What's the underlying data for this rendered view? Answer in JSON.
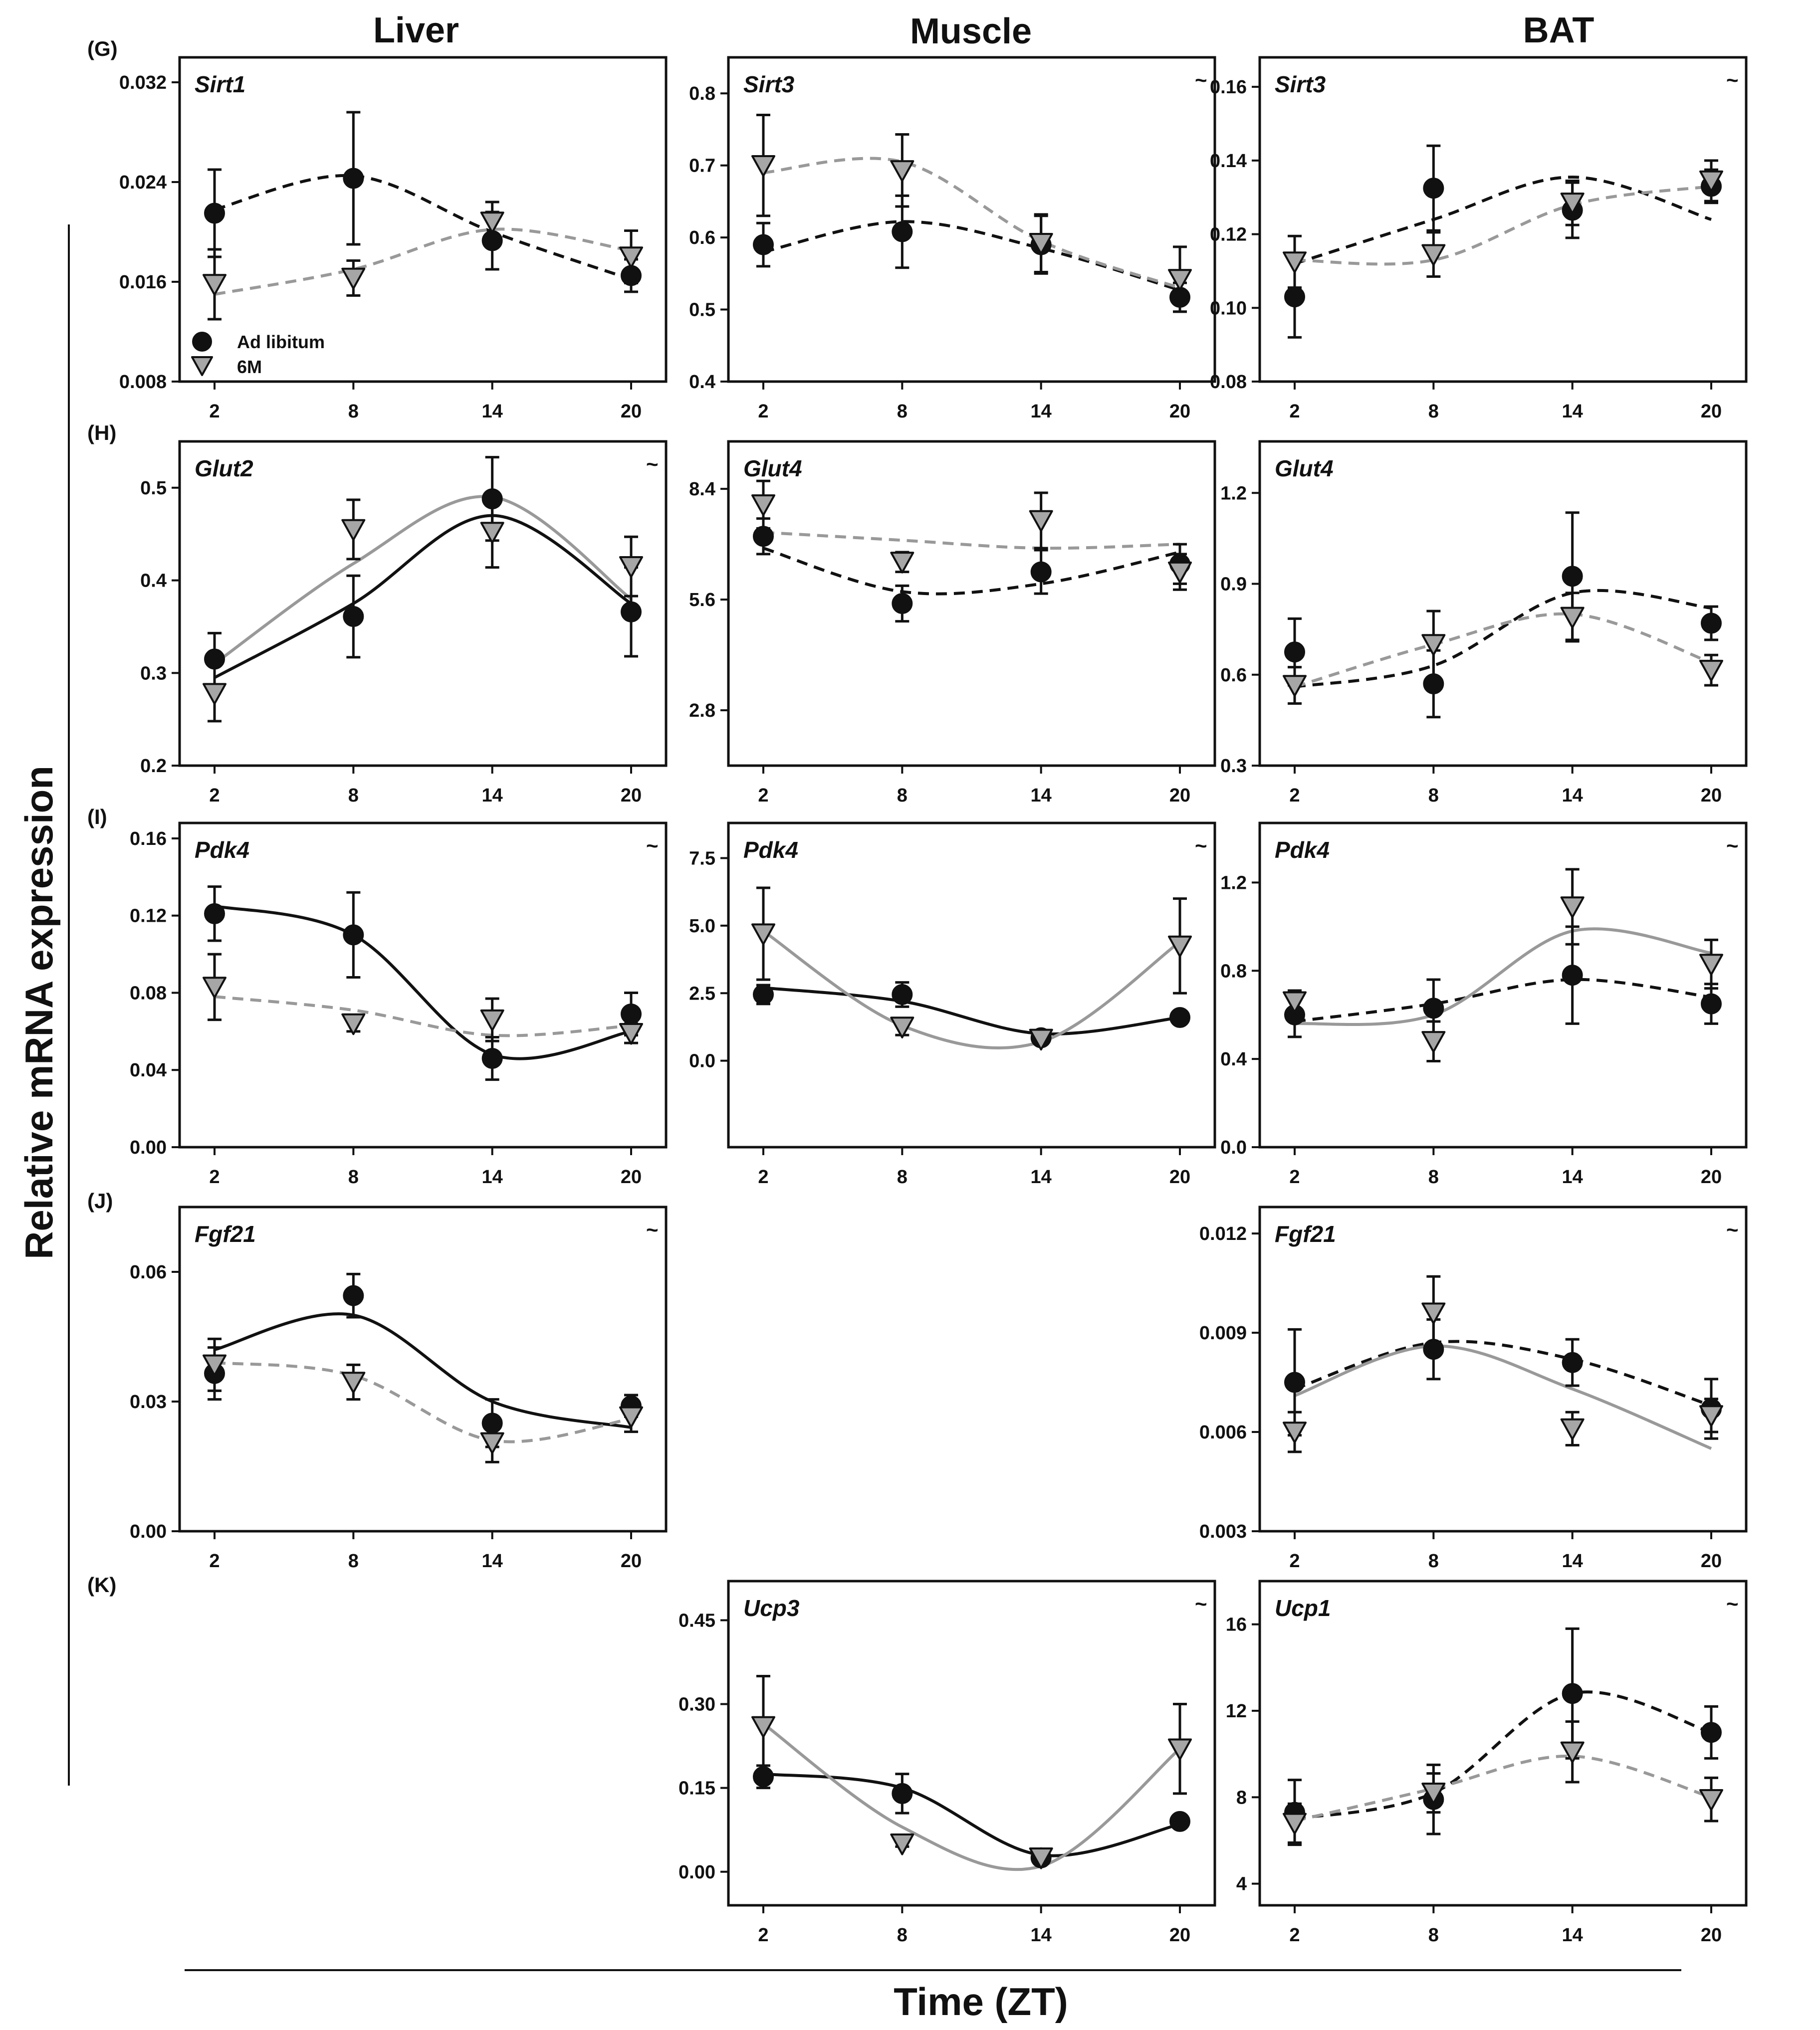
{
  "columns": [
    "Liver",
    "Muscle",
    "BAT"
  ],
  "row_letters": [
    "(G)",
    "(H)",
    "(I)",
    "(J)",
    "(K)"
  ],
  "y_axis_title": "Relative mRNA expression",
  "x_axis_title": "Time (ZT)",
  "legend": [
    {
      "label": "Ad libitum",
      "marker": "circle",
      "color": "#111111"
    },
    {
      "label": "6M",
      "marker": "triangle-down",
      "color": "#a6a6a6"
    }
  ],
  "colors": {
    "adlib": "#111111",
    "sixm": "#a6a6a6",
    "sixm_line": "#999999"
  },
  "chart_data": [
    {
      "type": "scatter",
      "row": 0,
      "col": 0,
      "gene": "Sirt1",
      "tilde": false,
      "title": "Sirt1",
      "xlabel": "Time (ZT)",
      "ylabel": "Relative mRNA expression",
      "x": [
        2,
        8,
        14,
        20
      ],
      "xticks": [
        "2",
        "8",
        "14",
        "20"
      ],
      "ylim": [
        0.008,
        0.034
      ],
      "yticks": [
        0.008,
        0.016,
        0.024,
        0.032
      ],
      "yticklabels": [
        "0.008",
        "0.016",
        "0.024",
        "0.032"
      ],
      "show_legend": true,
      "series": [
        {
          "name": "Ad libitum",
          "values": [
            0.0215,
            0.0243,
            0.0193,
            0.0165
          ],
          "errors": [
            0.0035,
            0.0053,
            0.0023,
            0.0013
          ],
          "curve": [
            0.0218,
            0.0245,
            0.02,
            0.0162
          ],
          "line": "dashed"
        },
        {
          "name": "6M",
          "values": [
            0.0158,
            0.0163,
            0.0208,
            0.018
          ],
          "errors": [
            0.0028,
            0.0014,
            0.0016,
            0.0021
          ],
          "curve": [
            0.015,
            0.017,
            0.0202,
            0.0185
          ],
          "line": "dashed"
        }
      ]
    },
    {
      "type": "scatter",
      "row": 0,
      "col": 1,
      "gene": "Sirt3",
      "tilde": true,
      "title": "Sirt3",
      "xlabel": "Time (ZT)",
      "ylabel": "Relative mRNA expression",
      "x": [
        2,
        8,
        14,
        20
      ],
      "xticks": [
        "2",
        "8",
        "14",
        "20"
      ],
      "ylim": [
        0.4,
        0.85
      ],
      "yticks": [
        0.4,
        0.5,
        0.6,
        0.7,
        0.8
      ],
      "yticklabels": [
        "0.4",
        "0.5",
        "0.6",
        "0.7",
        "0.8"
      ],
      "series": [
        {
          "name": "Ad libitum",
          "values": [
            0.59,
            0.608,
            0.59,
            0.517
          ],
          "errors": [
            0.03,
            0.05,
            0.04,
            0.02
          ],
          "curve": [
            0.58,
            0.622,
            0.585,
            0.527
          ],
          "line": "dashed"
        },
        {
          "name": "6M",
          "values": [
            0.7,
            0.693,
            0.592,
            0.542
          ],
          "errors": [
            0.07,
            0.05,
            0.04,
            0.045
          ],
          "curve": [
            0.69,
            0.705,
            0.595,
            0.53
          ],
          "line": "dashed"
        }
      ]
    },
    {
      "type": "scatter",
      "row": 0,
      "col": 2,
      "gene": "Sirt3",
      "tilde": true,
      "title": "Sirt3",
      "xlabel": "Time (ZT)",
      "ylabel": "Relative mRNA expression",
      "x": [
        2,
        8,
        14,
        20
      ],
      "xticks": [
        "2",
        "8",
        "14",
        "20"
      ],
      "ylim": [
        0.08,
        0.168
      ],
      "yticks": [
        0.08,
        0.1,
        0.12,
        0.14,
        0.16
      ],
      "yticklabels": [
        "0.08",
        "0.10",
        "0.12",
        "0.14",
        "0.16"
      ],
      "series": [
        {
          "name": "Ad libitum",
          "values": [
            0.103,
            0.1325,
            0.1265,
            0.133
          ],
          "errors": [
            0.011,
            0.0115,
            0.0075,
            0.0045
          ],
          "curve": [
            0.112,
            0.124,
            0.1355,
            0.124
          ],
          "line": "dashed"
        },
        {
          "name": "6M",
          "values": [
            0.1125,
            0.1145,
            0.1285,
            0.1345
          ],
          "errors": [
            0.007,
            0.006,
            0.006,
            0.0055
          ],
          "curve": [
            0.113,
            0.113,
            0.128,
            0.133
          ],
          "line": "dashed"
        }
      ]
    },
    {
      "type": "scatter",
      "row": 1,
      "col": 0,
      "gene": "Glut2",
      "tilde": true,
      "title": "Glut2",
      "xlabel": "Time (ZT)",
      "ylabel": "Relative mRNA expression",
      "x": [
        2,
        8,
        14,
        20
      ],
      "xticks": [
        "2",
        "8",
        "14",
        "20"
      ],
      "ylim": [
        0.2,
        0.55
      ],
      "yticks": [
        0.2,
        0.3,
        0.4,
        0.5
      ],
      "yticklabels": [
        "0.2",
        "0.3",
        "0.4",
        "0.5"
      ],
      "series": [
        {
          "name": "Ad libitum",
          "values": [
            0.315,
            0.361,
            0.488,
            0.366
          ],
          "errors": [
            0.028,
            0.044,
            0.045,
            0.048
          ],
          "curve": [
            0.295,
            0.375,
            0.47,
            0.375
          ],
          "line": "solid"
        },
        {
          "name": "6M",
          "values": [
            0.278,
            0.455,
            0.452,
            0.415
          ],
          "errors": [
            0.03,
            0.032,
            0.038,
            0.032
          ],
          "curve": [
            0.31,
            0.418,
            0.49,
            0.38
          ],
          "line": "solid"
        }
      ]
    },
    {
      "type": "scatter",
      "row": 1,
      "col": 1,
      "gene": "Glut4",
      "tilde": false,
      "title": "Glut4",
      "xlabel": "Time (ZT)",
      "ylabel": "Relative mRNA expression",
      "x": [
        2,
        8,
        14,
        20
      ],
      "xticks": [
        "2",
        "8",
        "14",
        "20"
      ],
      "ylim": [
        1.4,
        9.6
      ],
      "yticks": [
        2.8,
        5.6,
        8.4
      ],
      "yticklabels": [
        "2.8",
        "5.6",
        "8.4"
      ],
      "series": [
        {
          "name": "Ad libitum",
          "values": [
            7.2,
            5.5,
            6.3,
            6.5
          ],
          "errors": [
            0.45,
            0.45,
            0.55,
            0.5
          ],
          "curve": [
            6.9,
            5.8,
            6.0,
            6.8
          ],
          "line": "dashed"
        },
        {
          "name": "6M",
          "values": [
            8.0,
            6.55,
            7.6,
            6.3
          ],
          "errors": [
            0.6,
            0.25,
            0.7,
            0.45
          ],
          "curve": [
            7.3,
            7.1,
            6.9,
            7.0
          ],
          "line": "dashed"
        }
      ]
    },
    {
      "type": "scatter",
      "row": 1,
      "col": 2,
      "gene": "Glut4",
      "tilde": false,
      "title": "Glut4",
      "xlabel": "Time (ZT)",
      "ylabel": "Relative mRNA expression",
      "x": [
        2,
        8,
        14,
        20
      ],
      "xticks": [
        "2",
        "8",
        "14",
        "20"
      ],
      "ylim": [
        0.3,
        1.37
      ],
      "yticks": [
        0.3,
        0.6,
        0.9,
        1.2
      ],
      "yticklabels": [
        "0.3",
        "0.6",
        "0.9",
        "1.2"
      ],
      "series": [
        {
          "name": "Ad libitum",
          "values": [
            0.675,
            0.57,
            0.925,
            0.77
          ],
          "errors": [
            0.11,
            0.11,
            0.21,
            0.055
          ],
          "curve": [
            0.56,
            0.63,
            0.87,
            0.82
          ],
          "line": "dashed"
        },
        {
          "name": "6M",
          "values": [
            0.565,
            0.7,
            0.79,
            0.615
          ],
          "errors": [
            0.06,
            0.11,
            0.08,
            0.05
          ],
          "curve": [
            0.56,
            0.7,
            0.8,
            0.64
          ],
          "line": "dashed"
        }
      ]
    },
    {
      "type": "scatter",
      "row": 2,
      "col": 0,
      "gene": "Pdk4",
      "tilde": true,
      "title": "Pdk4",
      "xlabel": "Time (ZT)",
      "ylabel": "Relative mRNA expression",
      "x": [
        2,
        8,
        14,
        20
      ],
      "xticks": [
        "2",
        "8",
        "14",
        "20"
      ],
      "ylim": [
        0,
        0.168
      ],
      "yticks": [
        0,
        0.04,
        0.08,
        0.12,
        0.16
      ],
      "yticklabels": [
        "0.00",
        "0.04",
        "0.08",
        "0.12",
        "0.16"
      ],
      "series": [
        {
          "name": "Ad libitum",
          "values": [
            0.121,
            0.11,
            0.046,
            0.069
          ],
          "errors": [
            0.014,
            0.022,
            0.011,
            0.011
          ],
          "curve": [
            0.125,
            0.11,
            0.048,
            0.06
          ],
          "line": "solid"
        },
        {
          "name": "6M",
          "values": [
            0.083,
            0.064,
            0.066,
            0.059
          ],
          "errors": [
            0.017,
            0.004,
            0.011,
            0.005
          ],
          "curve": [
            0.078,
            0.071,
            0.058,
            0.063
          ],
          "line": "dashed"
        }
      ]
    },
    {
      "type": "scatter",
      "row": 2,
      "col": 1,
      "gene": "Pdk4",
      "tilde": true,
      "title": "Pdk4",
      "xlabel": "Time (ZT)",
      "ylabel": "Relative mRNA expression",
      "x": [
        2,
        8,
        14,
        20
      ],
      "xticks": [
        "2",
        "8",
        "14",
        "20"
      ],
      "ylim": [
        -3.2,
        8.8
      ],
      "yticks": [
        0,
        2.5,
        5.0,
        7.5
      ],
      "yticklabels": [
        "0.0",
        "2.5",
        "5.0",
        "7.5"
      ],
      "series": [
        {
          "name": "Ad libitum",
          "values": [
            2.45,
            2.45,
            0.85,
            1.6
          ],
          "errors": [
            0.35,
            0.45,
            0.2,
            0.15
          ],
          "curve": [
            2.7,
            2.2,
            1.0,
            1.6
          ],
          "line": "solid"
        },
        {
          "name": "6M",
          "values": [
            4.7,
            1.25,
            0.8,
            4.25
          ],
          "errors": [
            1.7,
            0.3,
            0.15,
            1.75
          ],
          "curve": [
            4.8,
            1.3,
            0.7,
            4.4
          ],
          "line": "solid"
        }
      ]
    },
    {
      "type": "scatter",
      "row": 2,
      "col": 2,
      "gene": "Pdk4",
      "tilde": true,
      "title": "Pdk4",
      "xlabel": "Time (ZT)",
      "ylabel": "Relative mRNA expression",
      "x": [
        2,
        8,
        14,
        20
      ],
      "xticks": [
        "2",
        "8",
        "14",
        "20"
      ],
      "ylim": [
        0,
        1.47
      ],
      "yticks": [
        0,
        0.4,
        0.8,
        1.2
      ],
      "yticklabels": [
        "0.0",
        "0.4",
        "0.8",
        "1.2"
      ],
      "series": [
        {
          "name": "Ad libitum",
          "values": [
            0.6,
            0.63,
            0.78,
            0.65
          ],
          "errors": [
            0.1,
            0.13,
            0.22,
            0.09
          ],
          "curve": [
            0.57,
            0.65,
            0.76,
            0.68
          ],
          "line": "dashed"
        },
        {
          "name": "6M",
          "values": [
            0.66,
            0.48,
            1.09,
            0.83
          ],
          "errors": [
            0.05,
            0.09,
            0.17,
            0.11
          ],
          "curve": [
            0.56,
            0.6,
            0.98,
            0.88
          ],
          "line": "solid"
        }
      ]
    },
    {
      "type": "scatter",
      "row": 3,
      "col": 0,
      "gene": "Fgf21",
      "tilde": true,
      "title": "Fgf21",
      "xlabel": "Time (ZT)",
      "ylabel": "Relative mRNA expression",
      "x": [
        2,
        8,
        14,
        20
      ],
      "xticks": [
        "2",
        "8",
        "14",
        "20"
      ],
      "ylim": [
        0,
        0.075
      ],
      "yticks": [
        0,
        0.03,
        0.06
      ],
      "yticklabels": [
        "0.00",
        "0.03",
        "0.06"
      ],
      "series": [
        {
          "name": "Ad libitum",
          "values": [
            0.0365,
            0.0545,
            0.025,
            0.029
          ],
          "errors": [
            0.006,
            0.005,
            0.0055,
            0.0025
          ],
          "curve": [
            0.042,
            0.05,
            0.03,
            0.024
          ],
          "line": "solid"
        },
        {
          "name": "6M",
          "values": [
            0.0385,
            0.0345,
            0.0205,
            0.0265
          ],
          "errors": [
            0.006,
            0.004,
            0.0045,
            0.0035
          ],
          "curve": [
            0.039,
            0.036,
            0.021,
            0.026
          ],
          "line": "dashed"
        }
      ]
    },
    {
      "type": "scatter",
      "row": 3,
      "col": 2,
      "gene": "Fgf21",
      "tilde": true,
      "title": "Fgf21",
      "xlabel": "Time (ZT)",
      "ylabel": "Relative mRNA expression",
      "x": [
        2,
        8,
        14,
        20
      ],
      "xticks": [
        "2",
        "8",
        "14",
        "20"
      ],
      "ylim": [
        0.003,
        0.0128
      ],
      "yticks": [
        0.003,
        0.006,
        0.009,
        0.012
      ],
      "yticklabels": [
        "0.003",
        "0.006",
        "0.009",
        "0.012"
      ],
      "series": [
        {
          "name": "Ad libitum",
          "values": [
            0.0075,
            0.0085,
            0.0081,
            0.0067
          ],
          "errors": [
            0.0016,
            0.0009,
            0.0007,
            0.0009
          ],
          "curve": [
            0.0073,
            0.0087,
            0.0082,
            0.0068
          ],
          "line": "dashed"
        },
        {
          "name": "6M",
          "values": [
            0.006,
            0.0096,
            0.0061,
            0.0065
          ],
          "errors": [
            0.0006,
            0.0011,
            0.0005,
            0.0005
          ],
          "curve": [
            0.0071,
            0.0086,
            0.0073,
            0.0055
          ],
          "line": "solid"
        }
      ]
    },
    {
      "type": "scatter",
      "row": 4,
      "col": 1,
      "gene": "Ucp3",
      "tilde": true,
      "title": "Ucp3",
      "xlabel": "Time (ZT)",
      "ylabel": "Relative mRNA expression",
      "x": [
        2,
        8,
        14,
        20
      ],
      "xticks": [
        "2",
        "8",
        "14",
        "20"
      ],
      "ylim": [
        -0.06,
        0.52
      ],
      "yticks": [
        0,
        0.15,
        0.3,
        0.45
      ],
      "yticklabels": [
        "0.00",
        "0.15",
        "0.30",
        "0.45"
      ],
      "series": [
        {
          "name": "Ad libitum",
          "values": [
            0.17,
            0.14,
            0.025,
            0.09
          ],
          "errors": [
            0.02,
            0.035,
            0.005,
            0.01
          ],
          "curve": [
            0.175,
            0.15,
            0.03,
            0.085
          ],
          "line": "solid"
        },
        {
          "name": "6M",
          "values": [
            0.26,
            0.05,
            0.025,
            0.22
          ],
          "errors": [
            0.09,
            0.005,
            0.005,
            0.08
          ],
          "curve": [
            0.265,
            0.08,
            0.01,
            0.22
          ],
          "line": "solid"
        }
      ]
    },
    {
      "type": "scatter",
      "row": 4,
      "col": 2,
      "gene": "Ucp1",
      "tilde": true,
      "title": "Ucp1",
      "xlabel": "Time (ZT)",
      "ylabel": "Relative mRNA expression",
      "x": [
        2,
        8,
        14,
        20
      ],
      "xticks": [
        "2",
        "8",
        "14",
        "20"
      ],
      "ylim": [
        3,
        18
      ],
      "yticks": [
        4,
        8,
        12,
        16
      ],
      "yticklabels": [
        "4",
        "8",
        "12",
        "16"
      ],
      "series": [
        {
          "name": "Ad libitum",
          "values": [
            7.3,
            7.9,
            12.8,
            11.0
          ],
          "errors": [
            1.5,
            1.6,
            3.0,
            1.2
          ],
          "curve": [
            7.0,
            8.2,
            12.8,
            11.0
          ],
          "line": "dashed"
        },
        {
          "name": "6M",
          "values": [
            6.8,
            8.2,
            10.1,
            7.9
          ],
          "errors": [
            0.9,
            0.9,
            1.4,
            1.0
          ],
          "curve": [
            6.9,
            8.4,
            9.9,
            8.0
          ],
          "line": "dashed"
        }
      ]
    }
  ]
}
